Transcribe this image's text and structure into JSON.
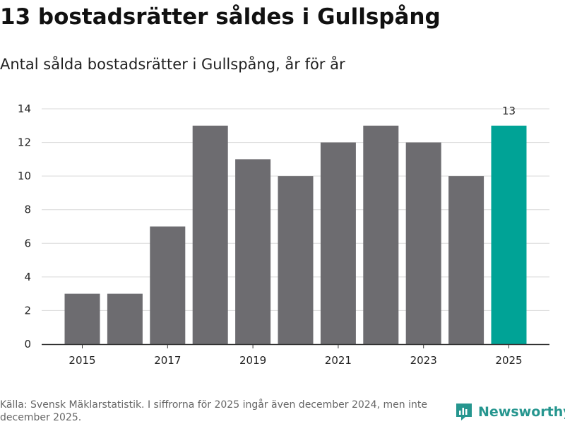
{
  "header": {
    "title": "13 bostadsrätter såldes i Gullspång",
    "subtitle": "Antal sålda bostadsrätter i Gullspång, år för år"
  },
  "colors": {
    "bar_default": "#6d6c70",
    "bar_highlight": "#00a396",
    "grid": "#d9d9d9",
    "axis": "#333333",
    "brand": "#26968f"
  },
  "chart_data": {
    "type": "bar",
    "title": "13 bostadsrätter såldes i Gullspång",
    "subtitle": "Antal sålda bostadsrätter i Gullspång, år för år",
    "xlabel": "",
    "ylabel": "",
    "categories": [
      2015,
      2016,
      2017,
      2018,
      2019,
      2020,
      2021,
      2022,
      2023,
      2024,
      2025
    ],
    "values": [
      3,
      3,
      7,
      13,
      11,
      10,
      12,
      13,
      12,
      10,
      13
    ],
    "highlight": [
      2025
    ],
    "x_ticks": [
      2015,
      2017,
      2019,
      2021,
      2023,
      2025
    ],
    "ylim": [
      0,
      14
    ],
    "y_ticks": [
      0,
      2,
      4,
      6,
      8,
      10,
      12,
      14
    ],
    "grid": true,
    "data_labels": [
      {
        "category": 2025,
        "text": "13"
      }
    ]
  },
  "footer": {
    "source": "Källa: Svensk Mäklarstatistik. I siffrorna för 2025 ingår även december 2024, men inte december 2025."
  },
  "brand": {
    "name": "Newsworthy",
    "icon": "newsworthy-logo-icon"
  }
}
